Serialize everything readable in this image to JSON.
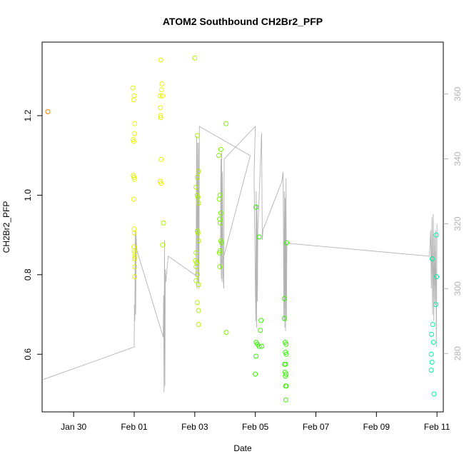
{
  "chart_data": {
    "type": "scatter",
    "title": "ATOM2 Southbound CH2Br2_PFP",
    "xlabel": "Date",
    "ylabel": "CH2Br2_PFP",
    "x_ticks": [
      "Jan 30",
      "Feb 01",
      "Feb 03",
      "Feb 05",
      "Feb 07",
      "Feb 09",
      "Feb 11"
    ],
    "y_ticks": [
      "0.6",
      "0.8",
      "1.0",
      "1.2"
    ],
    "y2_ticks": [
      "280",
      "300",
      "320",
      "340",
      "360"
    ],
    "grid": false,
    "colors": {
      "orange": "#ff8000",
      "yellow": "#e6f500",
      "yellowgreen": "#aef500",
      "green": "#7cf500",
      "lime": "#33f500",
      "teal": "#00f5a0",
      "track": "#b3b3b3"
    },
    "points": [
      {
        "x": "2016-01-29T03:30",
        "y": 1.21,
        "c": "orange"
      },
      {
        "x": "2016-01-31T23:00",
        "y": 1.27,
        "c": "yellow"
      },
      {
        "x": "2016-01-31T23:30",
        "y": 1.24,
        "c": "yellow"
      },
      {
        "x": "2016-02-01T00:00",
        "y": 1.25,
        "c": "yellow"
      },
      {
        "x": "2016-02-01T00:20",
        "y": 1.18,
        "c": "yellow"
      },
      {
        "x": "2016-02-01T00:10",
        "y": 1.155,
        "c": "yellow"
      },
      {
        "x": "2016-01-31T23:10",
        "y": 1.14,
        "c": "yellow"
      },
      {
        "x": "2016-01-31T23:40",
        "y": 1.135,
        "c": "yellow"
      },
      {
        "x": "2016-01-31T23:20",
        "y": 1.05,
        "c": "yellow"
      },
      {
        "x": "2016-01-31T23:50",
        "y": 1.045,
        "c": "yellow"
      },
      {
        "x": "2016-02-01T00:05",
        "y": 1.04,
        "c": "yellow"
      },
      {
        "x": "2016-01-31T23:30",
        "y": 0.99,
        "c": "yellow"
      },
      {
        "x": "2016-02-01T00:00",
        "y": 0.915,
        "c": "yellow"
      },
      {
        "x": "2016-02-01T00:10",
        "y": 0.905,
        "c": "yellow"
      },
      {
        "x": "2016-01-31T23:45",
        "y": 0.87,
        "c": "yellow"
      },
      {
        "x": "2016-02-01T00:05",
        "y": 0.86,
        "c": "yellow"
      },
      {
        "x": "2016-02-01T00:20",
        "y": 0.855,
        "c": "yellow"
      },
      {
        "x": "2016-02-01T00:35",
        "y": 0.845,
        "c": "yellow"
      },
      {
        "x": "2016-02-01T00:15",
        "y": 0.84,
        "c": "yellow"
      },
      {
        "x": "2016-02-01T00:25",
        "y": 0.82,
        "c": "yellow"
      },
      {
        "x": "2016-02-01T00:20",
        "y": 0.795,
        "c": "yellow"
      },
      {
        "x": "2016-02-01T21:00",
        "y": 1.34,
        "c": "yellow"
      },
      {
        "x": "2016-02-01T22:00",
        "y": 1.28,
        "c": "yellow"
      },
      {
        "x": "2016-02-01T21:40",
        "y": 1.265,
        "c": "yellow"
      },
      {
        "x": "2016-02-01T22:20",
        "y": 1.25,
        "c": "yellow"
      },
      {
        "x": "2016-02-01T20:30",
        "y": 1.25,
        "c": "yellow"
      },
      {
        "x": "2016-02-01T20:40",
        "y": 1.22,
        "c": "yellow"
      },
      {
        "x": "2016-02-01T20:50",
        "y": 1.2,
        "c": "yellow"
      },
      {
        "x": "2016-02-01T21:00",
        "y": 1.195,
        "c": "yellow"
      },
      {
        "x": "2016-02-01T21:20",
        "y": 1.09,
        "c": "yellow"
      },
      {
        "x": "2016-02-01T20:40",
        "y": 1.035,
        "c": "yellow"
      },
      {
        "x": "2016-02-01T21:15",
        "y": 1.03,
        "c": "yellow"
      },
      {
        "x": "2016-02-01T23:10",
        "y": 0.93,
        "c": "yellowgreen"
      },
      {
        "x": "2016-02-01T22:30",
        "y": 0.875,
        "c": "yellowgreen"
      },
      {
        "x": "2016-02-03T00:00",
        "y": 1.345,
        "c": "yellowgreen"
      },
      {
        "x": "2016-02-03T02:00",
        "y": 1.15,
        "c": "yellowgreen"
      },
      {
        "x": "2016-02-03T03:00",
        "y": 1.06,
        "c": "yellowgreen"
      },
      {
        "x": "2016-02-03T02:00",
        "y": 1.045,
        "c": "yellowgreen"
      },
      {
        "x": "2016-02-03T01:00",
        "y": 1.02,
        "c": "yellowgreen"
      },
      {
        "x": "2016-02-03T02:00",
        "y": 1.0,
        "c": "yellowgreen"
      },
      {
        "x": "2016-02-03T02:30",
        "y": 0.995,
        "c": "yellowgreen"
      },
      {
        "x": "2016-02-03T03:00",
        "y": 0.98,
        "c": "yellowgreen"
      },
      {
        "x": "2016-02-03T02:00",
        "y": 0.91,
        "c": "yellowgreen"
      },
      {
        "x": "2016-02-03T02:30",
        "y": 0.905,
        "c": "yellowgreen"
      },
      {
        "x": "2016-02-03T03:00",
        "y": 0.885,
        "c": "yellowgreen"
      },
      {
        "x": "2016-02-03T01:00",
        "y": 0.855,
        "c": "yellowgreen"
      },
      {
        "x": "2016-02-03T00:30",
        "y": 0.835,
        "c": "yellowgreen"
      },
      {
        "x": "2016-02-03T01:30",
        "y": 0.83,
        "c": "yellowgreen"
      },
      {
        "x": "2016-02-03T01:00",
        "y": 0.82,
        "c": "yellowgreen"
      },
      {
        "x": "2016-02-03T02:00",
        "y": 0.8,
        "c": "yellowgreen"
      },
      {
        "x": "2016-02-03T01:00",
        "y": 0.785,
        "c": "yellowgreen"
      },
      {
        "x": "2016-02-03T03:00",
        "y": 0.775,
        "c": "yellowgreen"
      },
      {
        "x": "2016-02-03T02:00",
        "y": 0.73,
        "c": "yellowgreen"
      },
      {
        "x": "2016-02-03T03:00",
        "y": 0.71,
        "c": "yellowgreen"
      },
      {
        "x": "2016-02-03T03:00",
        "y": 0.675,
        "c": "yellowgreen"
      },
      {
        "x": "2016-02-04T00:45",
        "y": 1.18,
        "c": "green"
      },
      {
        "x": "2016-02-03T20:40",
        "y": 1.115,
        "c": "green"
      },
      {
        "x": "2016-02-03T19:00",
        "y": 1.1,
        "c": "green"
      },
      {
        "x": "2016-02-03T20:00",
        "y": 1.0,
        "c": "green"
      },
      {
        "x": "2016-02-03T19:20",
        "y": 0.99,
        "c": "green"
      },
      {
        "x": "2016-02-03T20:40",
        "y": 0.955,
        "c": "green"
      },
      {
        "x": "2016-02-03T19:40",
        "y": 0.94,
        "c": "green"
      },
      {
        "x": "2016-02-03T20:10",
        "y": 0.93,
        "c": "green"
      },
      {
        "x": "2016-02-03T20:40",
        "y": 0.885,
        "c": "green"
      },
      {
        "x": "2016-02-03T21:20",
        "y": 0.88,
        "c": "green"
      },
      {
        "x": "2016-02-03T20:00",
        "y": 0.86,
        "c": "green"
      },
      {
        "x": "2016-02-03T19:30",
        "y": 0.855,
        "c": "green"
      },
      {
        "x": "2016-02-03T19:50",
        "y": 0.82,
        "c": "green"
      },
      {
        "x": "2016-02-04T01:00",
        "y": 0.655,
        "c": "green"
      },
      {
        "x": "2016-02-05T00:30",
        "y": 0.97,
        "c": "lime"
      },
      {
        "x": "2016-02-05T03:00",
        "y": 0.895,
        "c": "lime"
      },
      {
        "x": "2016-02-05T04:30",
        "y": 0.685,
        "c": "lime"
      },
      {
        "x": "2016-02-05T04:00",
        "y": 0.66,
        "c": "lime"
      },
      {
        "x": "2016-02-05T00:40",
        "y": 0.63,
        "c": "lime"
      },
      {
        "x": "2016-02-05T01:40",
        "y": 0.625,
        "c": "lime"
      },
      {
        "x": "2016-02-05T03:00",
        "y": 0.62,
        "c": "lime"
      },
      {
        "x": "2016-02-05T05:00",
        "y": 0.62,
        "c": "lime"
      },
      {
        "x": "2016-02-05T00:30",
        "y": 0.595,
        "c": "lime"
      },
      {
        "x": "2016-02-05T00:00",
        "y": 0.55,
        "c": "lime"
      },
      {
        "x": "2016-02-06T00:50",
        "y": 0.88,
        "c": "lime"
      },
      {
        "x": "2016-02-05T23:00",
        "y": 0.74,
        "c": "lime"
      },
      {
        "x": "2016-02-05T23:00",
        "y": 0.69,
        "c": "lime"
      },
      {
        "x": "2016-02-05T23:40",
        "y": 0.63,
        "c": "lime"
      },
      {
        "x": "2016-02-06T00:20",
        "y": 0.625,
        "c": "lime"
      },
      {
        "x": "2016-02-05T23:50",
        "y": 0.605,
        "c": "lime"
      },
      {
        "x": "2016-02-06T00:30",
        "y": 0.6,
        "c": "lime"
      },
      {
        "x": "2016-02-05T23:10",
        "y": 0.575,
        "c": "lime"
      },
      {
        "x": "2016-02-06T00:00",
        "y": 0.575,
        "c": "lime"
      },
      {
        "x": "2016-02-05T23:30",
        "y": 0.555,
        "c": "lime"
      },
      {
        "x": "2016-02-06T00:20",
        "y": 0.55,
        "c": "lime"
      },
      {
        "x": "2016-02-05T23:50",
        "y": 0.545,
        "c": "lime"
      },
      {
        "x": "2016-02-06T00:00",
        "y": 0.52,
        "c": "lime"
      },
      {
        "x": "2016-02-06T00:30",
        "y": 0.52,
        "c": "lime"
      },
      {
        "x": "2016-02-06T00:10",
        "y": 0.485,
        "c": "lime"
      },
      {
        "x": "2016-02-10T20:10",
        "y": 0.84,
        "c": "teal"
      },
      {
        "x": "2016-02-10T23:20",
        "y": 0.9,
        "c": "teal"
      },
      {
        "x": "2016-02-10T23:40",
        "y": 0.795,
        "c": "teal"
      },
      {
        "x": "2016-02-10T23:00",
        "y": 0.725,
        "c": "teal"
      },
      {
        "x": "2016-02-10T20:40",
        "y": 0.675,
        "c": "teal"
      },
      {
        "x": "2016-02-10T19:40",
        "y": 0.65,
        "c": "teal"
      },
      {
        "x": "2016-02-10T21:10",
        "y": 0.63,
        "c": "teal"
      },
      {
        "x": "2016-02-10T19:30",
        "y": 0.6,
        "c": "teal"
      },
      {
        "x": "2016-02-10T20:00",
        "y": 0.58,
        "c": "teal"
      },
      {
        "x": "2016-02-10T19:30",
        "y": 0.56,
        "c": "teal"
      },
      {
        "x": "2016-02-10T21:40",
        "y": 0.5,
        "c": "teal"
      }
    ],
    "track": [
      [
        "2016-01-29T00:00",
        272
      ],
      [
        "2016-02-01T00:00",
        282
      ],
      [
        "2016-02-01T00:10",
        295
      ],
      [
        "2016-02-01T00:30",
        290
      ],
      [
        "2016-02-01T00:50",
        318
      ],
      [
        "2016-02-01T01:10",
        292
      ],
      [
        "2016-02-01T01:30",
        317
      ],
      [
        "2016-02-01T02:00",
        312
      ],
      [
        "2016-02-01T23:00",
        285
      ],
      [
        "2016-02-01T23:20",
        298
      ],
      [
        "2016-02-01T23:40",
        268
      ],
      [
        "2016-02-02T00:00",
        315
      ],
      [
        "2016-02-02T00:20",
        270
      ],
      [
        "2016-02-02T00:40",
        306
      ],
      [
        "2016-02-02T01:00",
        302
      ],
      [
        "2016-02-02T03:00",
        310
      ],
      [
        "2016-02-03T01:00",
        304
      ],
      [
        "2016-02-03T01:30",
        347
      ],
      [
        "2016-02-03T01:50",
        300
      ],
      [
        "2016-02-03T02:10",
        345
      ],
      [
        "2016-02-03T02:40",
        302
      ],
      [
        "2016-02-03T03:00",
        345
      ],
      [
        "2016-02-03T03:20",
        300
      ],
      [
        "2016-02-03T03:40",
        350
      ],
      [
        "2016-02-04T20:00",
        341
      ],
      [
        "2016-02-03T20:20",
        306
      ],
      [
        "2016-02-03T20:40",
        340
      ],
      [
        "2016-02-03T21:00",
        303
      ],
      [
        "2016-02-03T21:20",
        342
      ],
      [
        "2016-02-03T21:40",
        302
      ],
      [
        "2016-02-03T22:00",
        336
      ],
      [
        "2016-02-03T22:30",
        304
      ],
      [
        "2016-02-03T23:00",
        300
      ],
      [
        "2016-02-03T23:20",
        340
      ],
      [
        "2016-02-05T00:00",
        350
      ],
      [
        "2016-02-04T23:00",
        335
      ],
      [
        "2016-02-05T00:20",
        290
      ],
      [
        "2016-02-05T00:40",
        330
      ],
      [
        "2016-02-05T01:00",
        288
      ],
      [
        "2016-02-05T01:20",
        326
      ],
      [
        "2016-02-05T01:40",
        296
      ],
      [
        "2016-02-05T02:00",
        318
      ],
      [
        "2016-02-05T05:00",
        348
      ],
      [
        "2016-02-05T05:30",
        315
      ],
      [
        "2016-02-05T06:00",
        318
      ],
      [
        "2016-02-05T21:00",
        333
      ],
      [
        "2016-02-05T22:00",
        336
      ],
      [
        "2016-02-05T22:40",
        290
      ],
      [
        "2016-02-05T23:00",
        330
      ],
      [
        "2016-02-05T23:20",
        288
      ],
      [
        "2016-02-05T23:40",
        328
      ],
      [
        "2016-02-06T00:00",
        287
      ],
      [
        "2016-02-06T00:20",
        334
      ],
      [
        "2016-02-06T00:40",
        290
      ],
      [
        "2016-02-06T01:00",
        314
      ],
      [
        "2016-02-10T18:00",
        310
      ],
      [
        "2016-02-10T19:00",
        318
      ],
      [
        "2016-02-10T19:30",
        300
      ],
      [
        "2016-02-10T20:00",
        322
      ],
      [
        "2016-02-10T20:30",
        292
      ],
      [
        "2016-02-10T21:00",
        323
      ],
      [
        "2016-02-10T21:30",
        290
      ],
      [
        "2016-02-10T22:00",
        316
      ],
      [
        "2016-02-10T22:30",
        295
      ],
      [
        "2016-02-10T23:00",
        318
      ],
      [
        "2016-02-10T23:30",
        282
      ],
      [
        "2016-02-11T00:00",
        320
      ]
    ]
  }
}
